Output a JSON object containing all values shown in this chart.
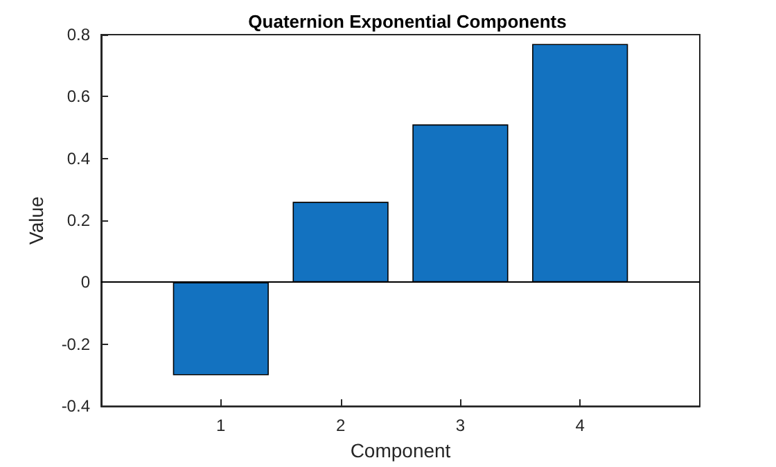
{
  "chart_data": {
    "type": "bar",
    "title": "Quaternion Exponential Components",
    "xlabel": "Component",
    "ylabel": "Value",
    "x": [
      1,
      2,
      3,
      4
    ],
    "values": [
      -0.3,
      0.26,
      0.51,
      0.77
    ],
    "color": "#1372c0",
    "xlim": [
      0,
      5
    ],
    "xticks": [
      1,
      2,
      3,
      4
    ],
    "ylim": [
      -0.4,
      0.8
    ],
    "yticks": [
      -0.4,
      -0.2,
      0,
      0.2,
      0.4,
      0.6,
      0.8
    ],
    "grid": false,
    "ref_lines": [
      {
        "axis": "y",
        "value": 0,
        "color": "#000000"
      }
    ]
  }
}
